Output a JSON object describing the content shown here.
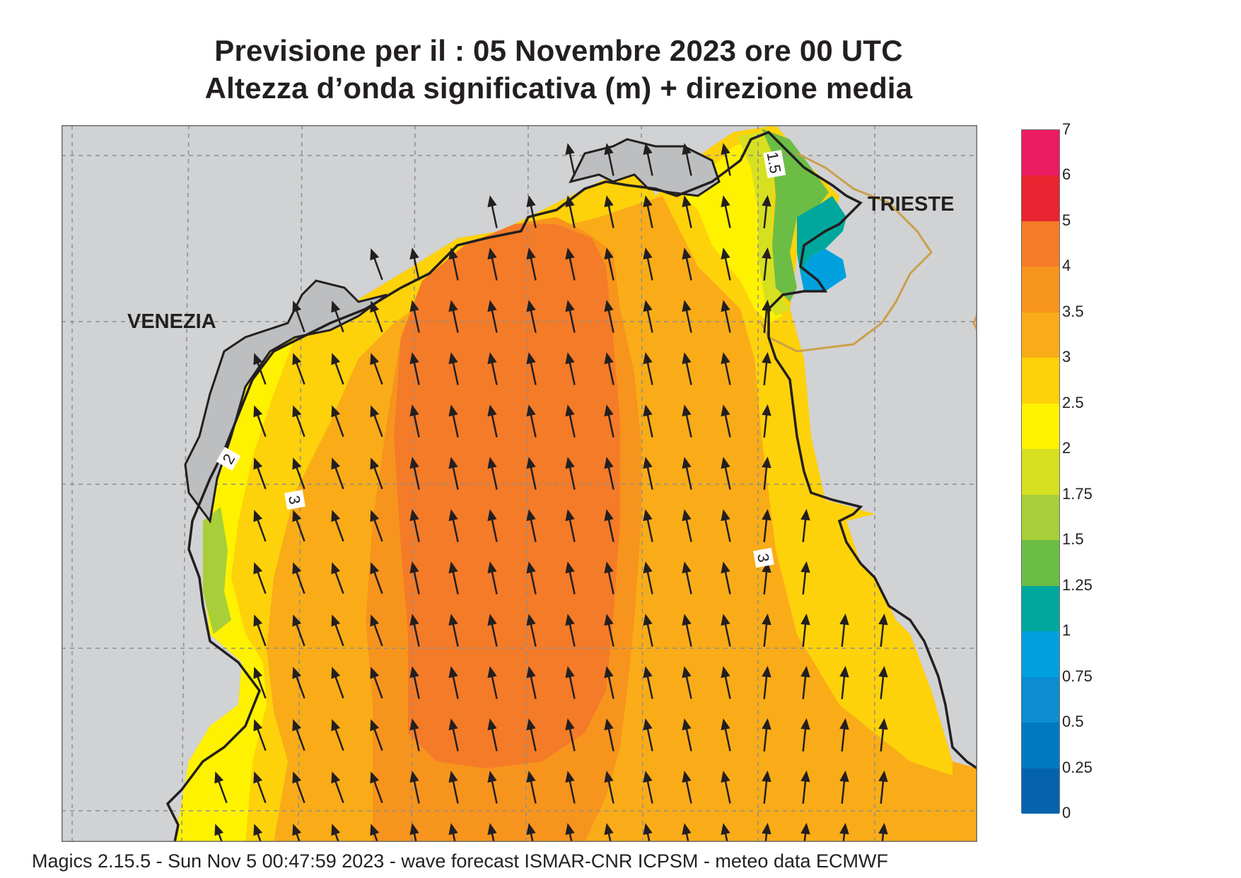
{
  "title": {
    "line1": "Previsione per il  :  05 Novembre  2023   ore 00 UTC",
    "line2": "Altezza d’onda significativa (m) + direzione media"
  },
  "map": {
    "labels": {
      "venezia": "VENEZIA",
      "trieste": "TRIESTE"
    },
    "contour_labels": [
      "1.5",
      "2",
      "3",
      "3"
    ],
    "arrow_direction": "north-northwest",
    "colors": {
      "land": "#d1d2d4",
      "coast": "#231f20",
      "grid": "#8e8e8e",
      "border": "#c9a04a",
      "arrow": "#231f20"
    }
  },
  "legend": {
    "title": "",
    "levels": [
      {
        "label": "7",
        "color": null
      },
      {
        "label": "6",
        "color": "#ec1c63"
      },
      {
        "label": "5",
        "color": "#e82530"
      },
      {
        "label": "4",
        "color": "#f47b28"
      },
      {
        "label": "3.5",
        "color": "#f7941d"
      },
      {
        "label": "3",
        "color": "#faac18"
      },
      {
        "label": "2.5",
        "color": "#fdd20a"
      },
      {
        "label": "2",
        "color": "#fff200"
      },
      {
        "label": "1.75",
        "color": "#d6e021"
      },
      {
        "label": "1.5",
        "color": "#a8cf39"
      },
      {
        "label": "1.25",
        "color": "#6cbd45"
      },
      {
        "label": "1",
        "color": "#00a79d"
      },
      {
        "label": "0.75",
        "color": "#00a0df"
      },
      {
        "label": "0.5",
        "color": "#0d8dd1"
      },
      {
        "label": "0.25",
        "color": "#0079c2"
      },
      {
        "label": "0",
        "color": "#0563ae"
      }
    ]
  },
  "footer": "Magics 2.15.5 - Sun Nov  5 00:47:59 2023 - wave forecast  ISMAR-CNR  ICPSM - meteo data    ECMWF"
}
